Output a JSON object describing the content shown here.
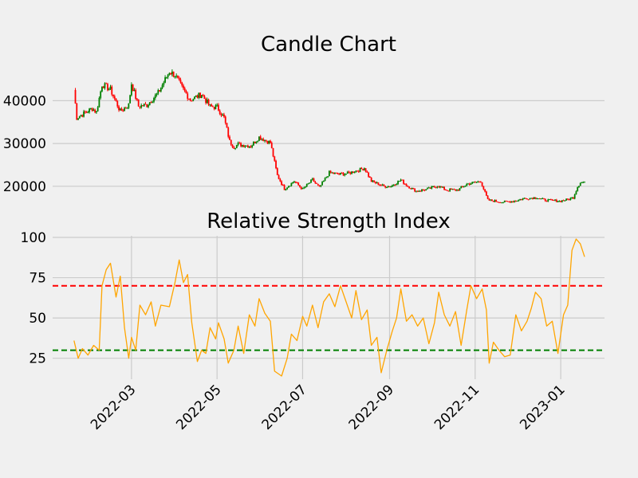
{
  "colors": {
    "background": "#f0f0f0",
    "grid": "#cbcbcb",
    "up": "#008000",
    "down": "#ff0000",
    "rsi_line": "#ffa500",
    "overbought": "#ff0000",
    "oversold": "#008000"
  },
  "chart_data": [
    {
      "type": "candlestick",
      "title": "Candle Chart",
      "x_range": [
        "2022-01-18",
        "2023-01-18"
      ],
      "yticks": [
        20000,
        30000,
        40000
      ],
      "ylim": [
        15500,
        49000
      ],
      "grid": "horizontal",
      "anchors": [
        [
          "2022-01-19",
          42500
        ],
        [
          "2022-01-21",
          36000
        ],
        [
          "2022-01-25",
          36800
        ],
        [
          "2022-02-01",
          38200
        ],
        [
          "2022-02-04",
          37300
        ],
        [
          "2022-02-08",
          43800
        ],
        [
          "2022-02-14",
          42600
        ],
        [
          "2022-02-21",
          37500
        ],
        [
          "2022-02-27",
          39000
        ],
        [
          "2022-03-01",
          44000
        ],
        [
          "2022-03-06",
          38700
        ],
        [
          "2022-03-12",
          39000
        ],
        [
          "2022-03-20",
          41800
        ],
        [
          "2022-03-28",
          46800
        ],
        [
          "2022-04-01",
          46000
        ],
        [
          "2022-04-06",
          43000
        ],
        [
          "2022-04-12",
          40200
        ],
        [
          "2022-04-20",
          41500
        ],
        [
          "2022-04-26",
          38600
        ],
        [
          "2022-05-01",
          38500
        ],
        [
          "2022-05-06",
          36000
        ],
        [
          "2022-05-10",
          30500
        ],
        [
          "2022-05-13",
          29200
        ],
        [
          "2022-05-16",
          29800
        ],
        [
          "2022-05-25",
          29400
        ],
        [
          "2022-05-31",
          31500
        ],
        [
          "2022-06-08",
          30200
        ],
        [
          "2022-06-13",
          22500
        ],
        [
          "2022-06-18",
          19400
        ],
        [
          "2022-06-25",
          21200
        ],
        [
          "2022-07-01",
          19300
        ],
        [
          "2022-07-08",
          21500
        ],
        [
          "2022-07-13",
          19700
        ],
        [
          "2022-07-20",
          23200
        ],
        [
          "2022-07-27",
          22800
        ],
        [
          "2022-08-02",
          23000
        ],
        [
          "2022-08-10",
          23800
        ],
        [
          "2022-08-14",
          24300
        ],
        [
          "2022-08-19",
          21200
        ],
        [
          "2022-08-28",
          20000
        ],
        [
          "2022-09-02",
          20000
        ],
        [
          "2022-09-09",
          21500
        ],
        [
          "2022-09-13",
          20200
        ],
        [
          "2022-09-20",
          18900
        ],
        [
          "2022-09-28",
          19300
        ],
        [
          "2022-10-05",
          20100
        ],
        [
          "2022-10-12",
          19100
        ],
        [
          "2022-10-20",
          19200
        ],
        [
          "2022-10-26",
          20500
        ],
        [
          "2022-11-05",
          21200
        ],
        [
          "2022-11-08",
          18500
        ],
        [
          "2022-11-10",
          16800
        ],
        [
          "2022-11-20",
          16300
        ],
        [
          "2022-11-28",
          16500
        ],
        [
          "2022-12-05",
          17100
        ],
        [
          "2022-12-15",
          17400
        ],
        [
          "2022-12-20",
          16800
        ],
        [
          "2022-12-31",
          16550
        ],
        [
          "2023-01-06",
          16900
        ],
        [
          "2023-01-10",
          17400
        ],
        [
          "2023-01-13",
          19900
        ],
        [
          "2023-01-15",
          20900
        ],
        [
          "2023-01-18",
          21000
        ]
      ]
    },
    {
      "type": "line",
      "title": "Relative Strength Index",
      "yticks": [
        25,
        50,
        75,
        100
      ],
      "ylim": [
        12,
        101
      ],
      "xticks": [
        "2022-03",
        "2022-05",
        "2022-07",
        "2022-09",
        "2022-11",
        "2023-01"
      ],
      "reference_lines": [
        {
          "value": 70,
          "color": "#ff0000",
          "style": "dashed"
        },
        {
          "value": 30,
          "color": "#008000",
          "style": "dashed"
        }
      ],
      "grid": "both",
      "series": [
        {
          "values": [
            [
              "2022-01-19",
              36
            ],
            [
              "2022-01-22",
              25
            ],
            [
              "2022-01-25",
              31
            ],
            [
              "2022-01-29",
              27
            ],
            [
              "2022-02-02",
              33
            ],
            [
              "2022-02-06",
              30
            ],
            [
              "2022-02-08",
              70
            ],
            [
              "2022-02-11",
              80
            ],
            [
              "2022-02-14",
              84
            ],
            [
              "2022-02-18",
              63
            ],
            [
              "2022-02-21",
              76
            ],
            [
              "2022-02-24",
              44
            ],
            [
              "2022-02-27",
              25
            ],
            [
              "2022-03-01",
              38
            ],
            [
              "2022-03-04",
              30
            ],
            [
              "2022-03-07",
              58
            ],
            [
              "2022-03-11",
              52
            ],
            [
              "2022-03-15",
              60
            ],
            [
              "2022-03-18",
              45
            ],
            [
              "2022-03-22",
              58
            ],
            [
              "2022-03-28",
              57
            ],
            [
              "2022-04-01",
              72
            ],
            [
              "2022-04-04",
              86
            ],
            [
              "2022-04-07",
              72
            ],
            [
              "2022-04-10",
              77
            ],
            [
              "2022-04-13",
              47
            ],
            [
              "2022-04-17",
              23
            ],
            [
              "2022-04-20",
              30
            ],
            [
              "2022-04-23",
              28
            ],
            [
              "2022-04-26",
              44
            ],
            [
              "2022-04-30",
              37
            ],
            [
              "2022-05-02",
              47
            ],
            [
              "2022-05-06",
              37
            ],
            [
              "2022-05-09",
              22
            ],
            [
              "2022-05-13",
              30
            ],
            [
              "2022-05-16",
              45
            ],
            [
              "2022-05-20",
              28
            ],
            [
              "2022-05-24",
              52
            ],
            [
              "2022-05-28",
              45
            ],
            [
              "2022-05-31",
              62
            ],
            [
              "2022-06-04",
              53
            ],
            [
              "2022-06-08",
              48
            ],
            [
              "2022-06-11",
              17
            ],
            [
              "2022-06-16",
              14
            ],
            [
              "2022-06-20",
              25
            ],
            [
              "2022-06-23",
              40
            ],
            [
              "2022-06-27",
              36
            ],
            [
              "2022-07-01",
              51
            ],
            [
              "2022-07-04",
              45
            ],
            [
              "2022-07-08",
              58
            ],
            [
              "2022-07-12",
              44
            ],
            [
              "2022-07-16",
              60
            ],
            [
              "2022-07-20",
              65
            ],
            [
              "2022-07-24",
              57
            ],
            [
              "2022-07-28",
              70
            ],
            [
              "2022-08-01",
              60
            ],
            [
              "2022-08-05",
              50
            ],
            [
              "2022-08-08",
              67
            ],
            [
              "2022-08-12",
              49
            ],
            [
              "2022-08-16",
              55
            ],
            [
              "2022-08-19",
              33
            ],
            [
              "2022-08-23",
              38
            ],
            [
              "2022-08-26",
              16
            ],
            [
              "2022-08-30",
              30
            ],
            [
              "2022-09-03",
              42
            ],
            [
              "2022-09-06",
              50
            ],
            [
              "2022-09-09",
              68
            ],
            [
              "2022-09-13",
              48
            ],
            [
              "2022-09-17",
              52
            ],
            [
              "2022-09-21",
              45
            ],
            [
              "2022-09-25",
              50
            ],
            [
              "2022-09-29",
              34
            ],
            [
              "2022-10-03",
              47
            ],
            [
              "2022-10-06",
              66
            ],
            [
              "2022-10-10",
              52
            ],
            [
              "2022-10-14",
              45
            ],
            [
              "2022-10-18",
              54
            ],
            [
              "2022-10-22",
              33
            ],
            [
              "2022-10-26",
              55
            ],
            [
              "2022-10-29",
              70
            ],
            [
              "2022-11-02",
              62
            ],
            [
              "2022-11-06",
              68
            ],
            [
              "2022-11-09",
              55
            ],
            [
              "2022-11-11",
              22
            ],
            [
              "2022-11-14",
              35
            ],
            [
              "2022-11-18",
              30
            ],
            [
              "2022-11-22",
              26
            ],
            [
              "2022-11-26",
              27
            ],
            [
              "2022-11-30",
              52
            ],
            [
              "2022-12-04",
              42
            ],
            [
              "2022-12-08",
              48
            ],
            [
              "2022-12-11",
              56
            ],
            [
              "2022-12-14",
              66
            ],
            [
              "2022-12-18",
              62
            ],
            [
              "2022-12-22",
              45
            ],
            [
              "2022-12-26",
              48
            ],
            [
              "2022-12-30",
              28
            ],
            [
              "2023-01-03",
              52
            ],
            [
              "2023-01-06",
              58
            ],
            [
              "2023-01-09",
              92
            ],
            [
              "2023-01-12",
              99
            ],
            [
              "2023-01-15",
              96
            ],
            [
              "2023-01-18",
              88
            ]
          ]
        }
      ]
    }
  ]
}
